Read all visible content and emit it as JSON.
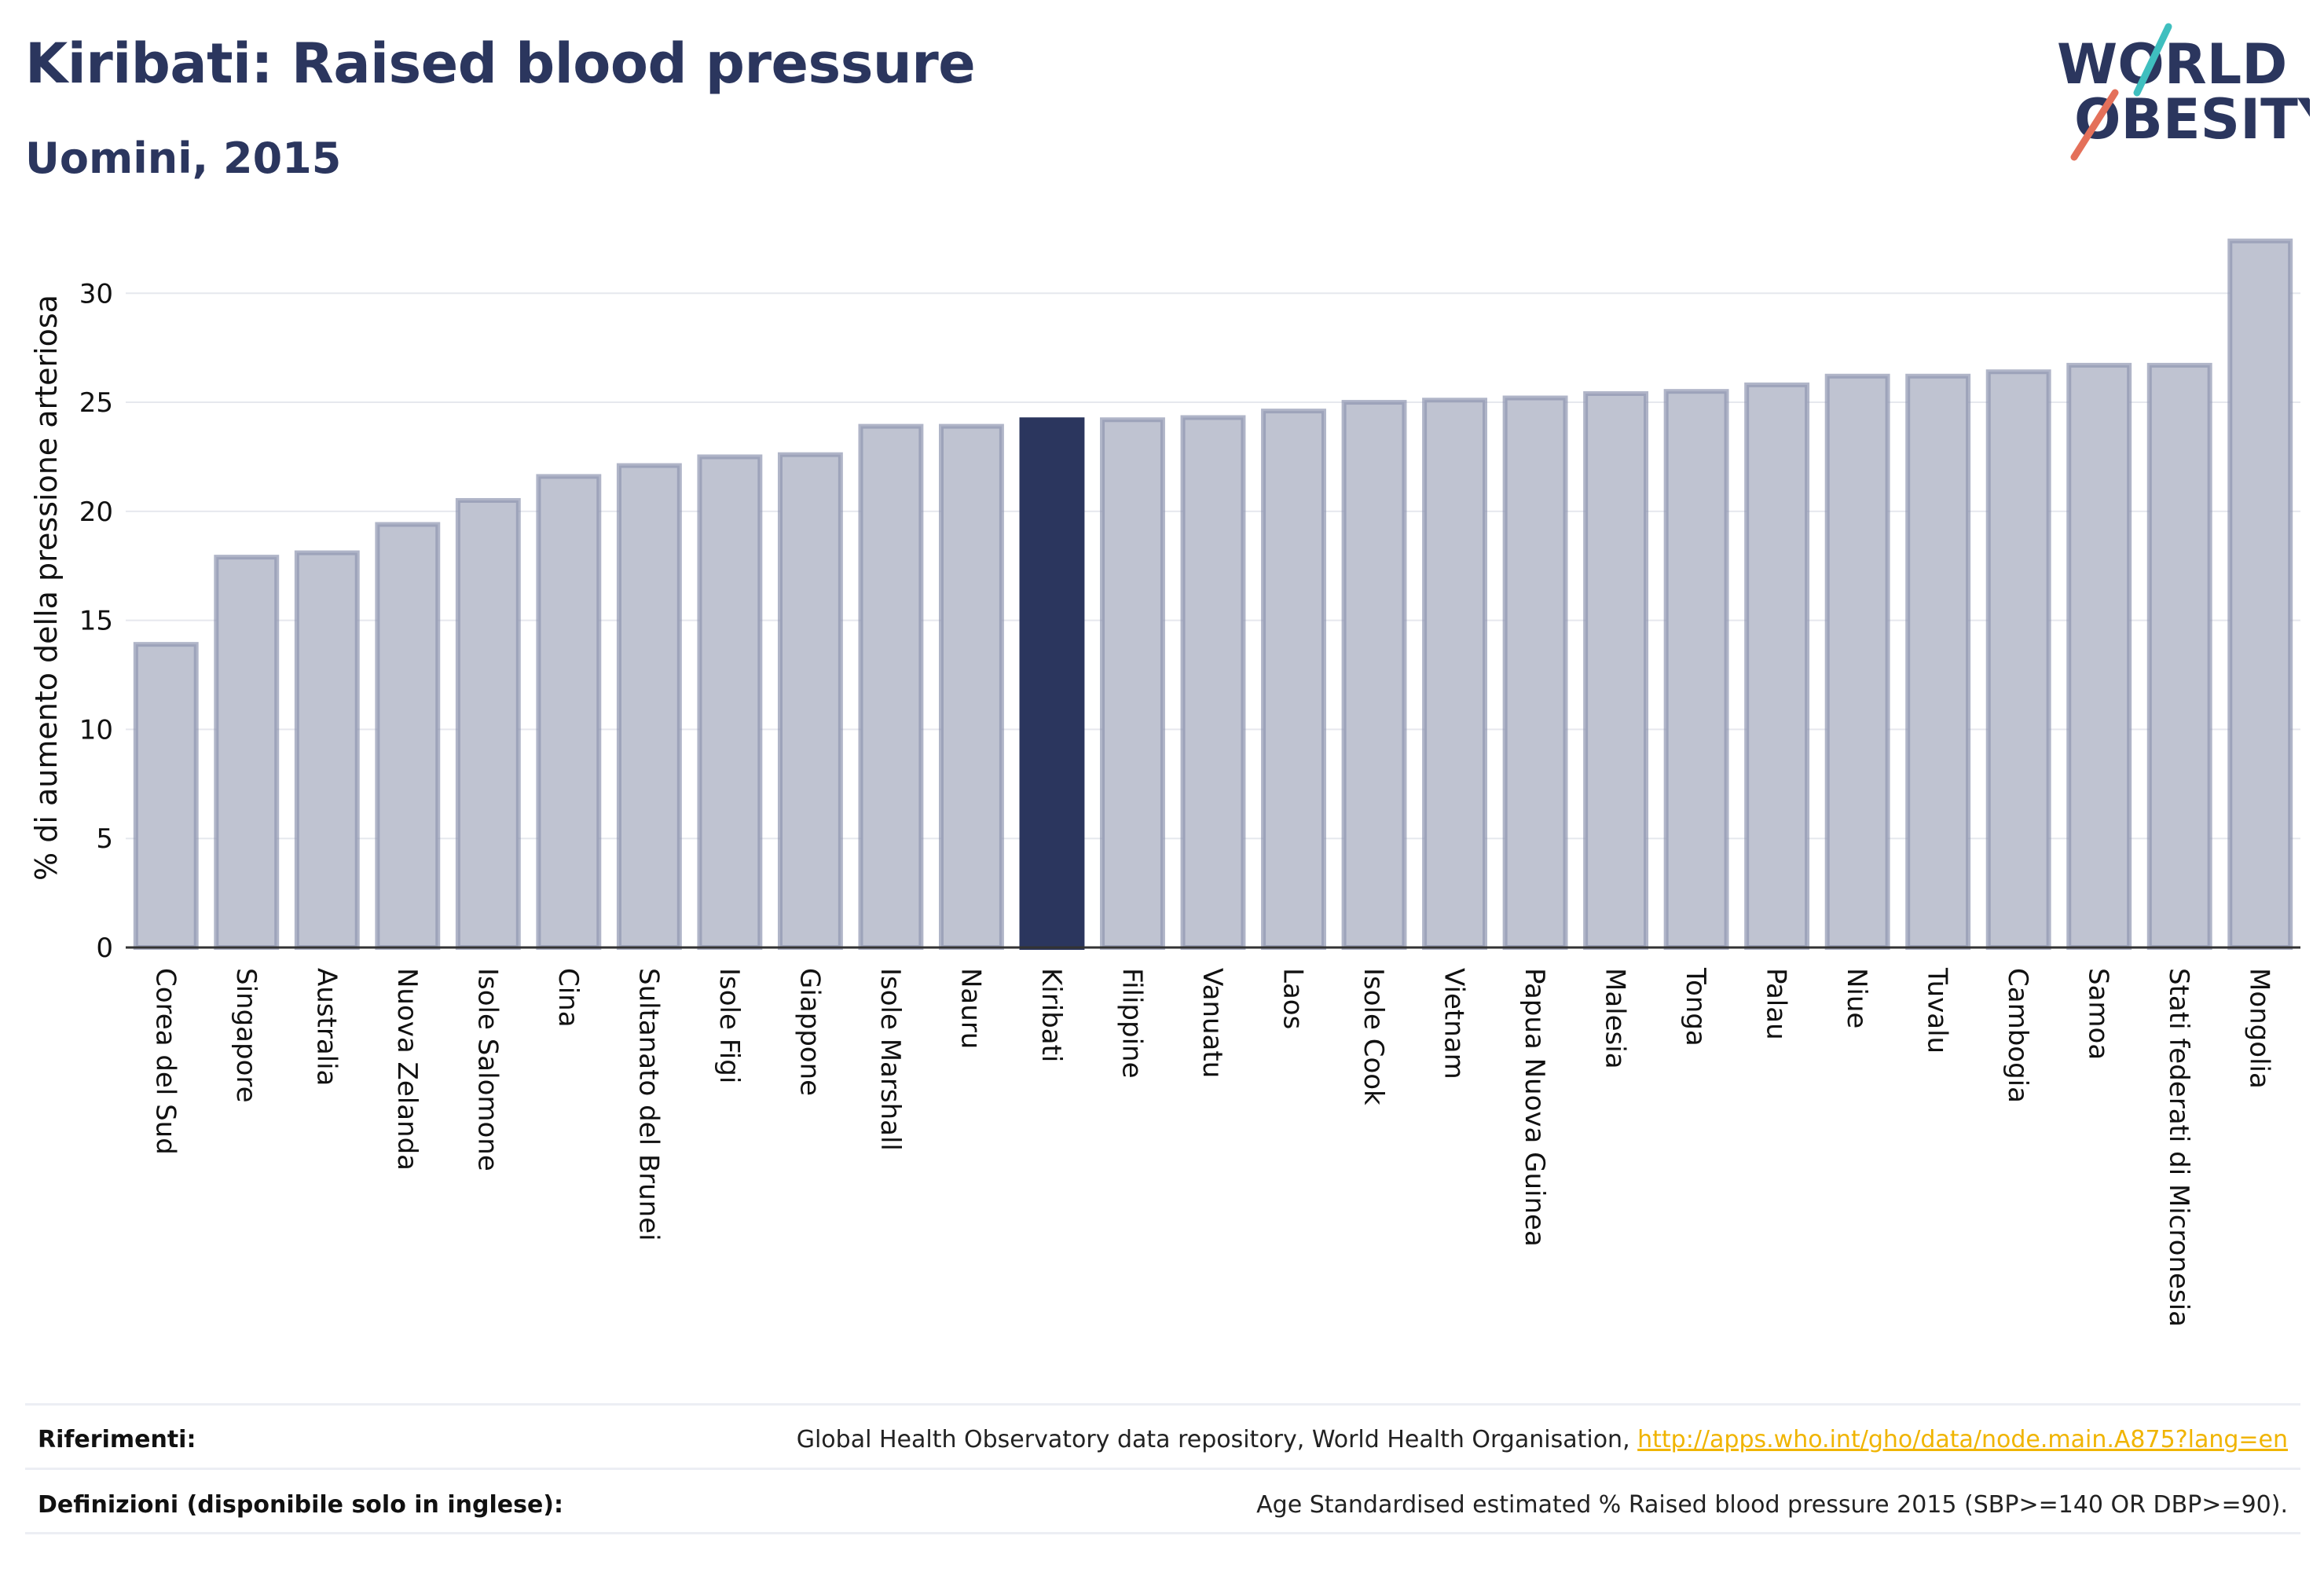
{
  "header": {
    "title": "Kiribati: Raised blood pressure",
    "subtitle": "Uomini, 2015"
  },
  "logo": {
    "line1": "WORLD",
    "line2": "OBESITY",
    "accent_colors": [
      "#3fbfbf",
      "#e4705a"
    ]
  },
  "colors": {
    "bar_default": "#bfc3d1",
    "bar_border": "#8e95b0",
    "bar_highlight": "#2b365e",
    "grid": "#e6e8ee",
    "axis": "#333333",
    "text": "#111111"
  },
  "chart_data": {
    "type": "bar",
    "ylabel": "% di aumento della pressione arteriosa",
    "ylim": [
      0,
      33
    ],
    "yticks": [
      0,
      5,
      10,
      15,
      20,
      25,
      30
    ],
    "grid": true,
    "highlight": "Kiribati",
    "categories": [
      "Corea del Sud",
      "Singapore",
      "Australia",
      "Nuova Zelanda",
      "Isole Salomone",
      "Cina",
      "Sultanato del Brunei",
      "Isole Figi",
      "Giappone",
      "Isole Marshall",
      "Nauru",
      "Kiribati",
      "Filippine",
      "Vanuatu",
      "Laos",
      "Isole Cook",
      "Vietnam",
      "Papua Nuova Guinea",
      "Malesia",
      "Tonga",
      "Palau",
      "Niue",
      "Tuvalu",
      "Cambogia",
      "Samoa",
      "Stati federati di Micronesia",
      "Mongolia"
    ],
    "values": [
      13.9,
      17.9,
      18.1,
      19.4,
      20.5,
      21.6,
      22.1,
      22.5,
      22.6,
      23.9,
      23.9,
      24.2,
      24.2,
      24.3,
      24.6,
      25.0,
      25.1,
      25.2,
      25.4,
      25.5,
      25.8,
      26.2,
      26.2,
      26.4,
      26.7,
      26.7,
      32.4
    ]
  },
  "footer": {
    "references_label": "Riferimenti:",
    "references_text": "Global Health Observatory data repository, World Health Organisation, ",
    "references_link": "http://apps.who.int/gho/data/node.main.A875?lang=en",
    "definitions_label": "Definizioni (disponibile solo in inglese):",
    "definitions_text": "Age Standardised estimated % Raised blood pressure 2015 (SBP>=140 OR DBP>=90)."
  }
}
